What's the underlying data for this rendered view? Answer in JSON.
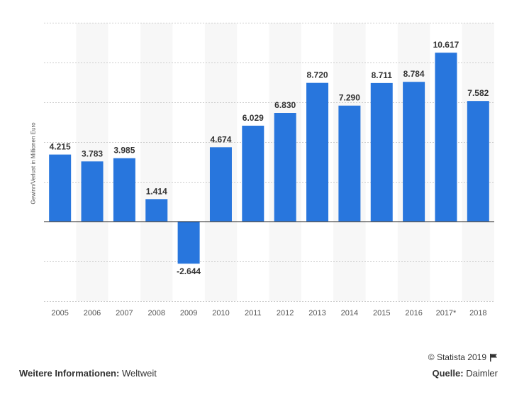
{
  "chart_data": {
    "type": "bar",
    "ylabel": "Gewinn/Verlust in Millionen Euro",
    "categories": [
      "2005",
      "2006",
      "2007",
      "2008",
      "2009",
      "2010",
      "2011",
      "2012",
      "2013",
      "2014",
      "2015",
      "2016",
      "2017*",
      "2018"
    ],
    "values": [
      4215,
      3783,
      3985,
      1414,
      -2644,
      4674,
      6029,
      6830,
      8720,
      7290,
      8711,
      8784,
      10617,
      7582
    ],
    "value_labels": [
      "4.215",
      "3.783",
      "3.985",
      "1.414",
      "-2.644",
      "4.674",
      "6.029",
      "6.830",
      "8.720",
      "7.290",
      "8.711",
      "8.784",
      "10.617",
      "7.582"
    ],
    "ylim": [
      -5000,
      12500
    ],
    "grid": true,
    "bar_color": "#2876dd"
  },
  "footer": {
    "copyright": "© Statista 2019",
    "more_info_label": "Weitere Informationen:",
    "more_info_value": "Weltweit",
    "source_label": "Quelle:",
    "source_value": "Daimler"
  }
}
